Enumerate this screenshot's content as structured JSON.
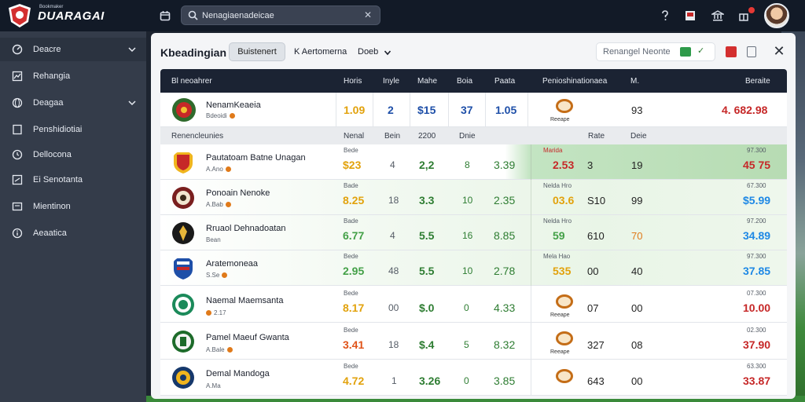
{
  "app": {
    "brand_small": "Bookmaker",
    "brand": "DUARAGAI",
    "search_placeholder": "Nenagiaenadeicae",
    "colors": {
      "topbar": "#121a27",
      "sidebar": "#343c4a",
      "accent_red": "#d32f2f",
      "accent_green": "#2e9a4a"
    }
  },
  "topbar_icons": [
    "calendar-icon",
    "question-icon",
    "document-icon",
    "bank-icon",
    "gift-icon"
  ],
  "sidebar": {
    "items": [
      {
        "label": "Deacre",
        "icon": "dashboard-icon",
        "chevron": true,
        "active": true
      },
      {
        "label": "Rehangia",
        "icon": "chart-icon",
        "chevron": false
      },
      {
        "label": "Deagaa",
        "icon": "globe-icon",
        "chevron": true
      },
      {
        "label": "Penshidiotiai",
        "icon": "tablet-icon",
        "chevron": false
      },
      {
        "label": "Dellocona",
        "icon": "clock-icon",
        "chevron": false
      },
      {
        "label": "Ei Senotanta",
        "icon": "list-icon",
        "chevron": false
      },
      {
        "label": "Mientinon",
        "icon": "message-icon",
        "chevron": false
      },
      {
        "label": "Aeaatica",
        "icon": "info-icon",
        "chevron": false
      }
    ]
  },
  "panel": {
    "title": "Kbeadingian",
    "tab_active": "Buistenert",
    "tab_2": "K Aertomerna",
    "tab_3": "Doeb",
    "right_field": "Renangel Neonte"
  },
  "table": {
    "headers": {
      "team": "Bl neoahrer",
      "c1": "Horis",
      "c2": "Inyle",
      "c3": "Mahe",
      "c4": "Boia",
      "c5": "Paata",
      "c6": "Penioshinationaea",
      "c7": "M.",
      "c8": "Beraite"
    },
    "featured": {
      "name": "NenamKeaeia",
      "sub": "Bdeoidi",
      "v1": "1.09",
      "v2": "2",
      "v3": "$15",
      "v4": "37",
      "v5": "1.05",
      "ball_label": "Reeape",
      "v7": "93",
      "v8": "4. 682.98"
    },
    "subheader": {
      "team": "Renencleunies",
      "c1": "Nenal",
      "c2": "Bein",
      "c3": "2200",
      "c4": "Dnie",
      "c5": "Rate",
      "c6": "Deie",
      "c7": "Marida"
    },
    "rows": [
      {
        "name": "Pautatoam Batne Unagan",
        "sub": "A.Ano",
        "micro1": "Bede",
        "v1": "$23",
        "v1c": "#e2a20c",
        "v2": "4",
        "v3": "2,2",
        "v4": "8",
        "v5": "3.39",
        "micro6": "Marida",
        "v6": "2.53",
        "v6c": "#c62828",
        "v7": "3",
        "v8": "19",
        "micro8": "97.300",
        "v9": "45 75",
        "v9c": "#c62828",
        "crest": "crest-red"
      },
      {
        "name": "Ponoain Nenoke",
        "sub": "A.Bab",
        "micro1": "Bade",
        "v1": "8.25",
        "v1c": "#e2a20c",
        "v2": "18",
        "v3": "3.3",
        "v4": "10",
        "v5": "2.35",
        "micro6": "Nelda Hro",
        "v6": "03.6",
        "v6c": "#e2a20c",
        "v7": "S10",
        "v8": "99",
        "micro8": "67.300",
        "v9": "$5.99",
        "v9c": "#1e88e5",
        "crest": "crest-maroon"
      },
      {
        "name": "Rruaol Dehnadoatan",
        "sub": "Bean",
        "micro1": "Bade",
        "v1": "6.77",
        "v1c": "#43a047",
        "v2": "4",
        "v3": "5.5",
        "v4": "16",
        "v5": "8.85",
        "micro6": "Nelda Hro",
        "v6": "59",
        "v6c": "#43a047",
        "v7": "610",
        "v8": "70",
        "micro8": "97.200",
        "v9": "34.89",
        "v9c": "#1e88e5",
        "crest": "crest-black"
      },
      {
        "name": "Aratemoneaa",
        "sub": "S.Se",
        "micro1": "Bede",
        "v1": "2.95",
        "v1c": "#43a047",
        "v2": "48",
        "v3": "5.5",
        "v4": "10",
        "v5": "2.78",
        "micro6": "Mela Hao",
        "v6": "535",
        "v6c": "#e2a20c",
        "v7": "00",
        "v8": "40",
        "micro8": "97.300",
        "v9": "37.85",
        "v9c": "#1e88e5",
        "crest": "crest-blue"
      },
      {
        "name": "Naemal Maemsanta",
        "sub": "2.17",
        "micro1": "Bede",
        "v1": "8.17",
        "v1c": "#e2a20c",
        "v2": "00",
        "v3": "$.0",
        "v4": "0",
        "v5": "4.33",
        "ball_label": "Reeape",
        "v7": "07",
        "v8": "00",
        "micro8": "07.300",
        "v9": "10.00",
        "v9c": "#c62828",
        "crest": "crest-green"
      },
      {
        "name": "Pamel Maeuf Gwanta",
        "sub": "A.Bale",
        "micro1": "Bede",
        "v1": "3.41",
        "v1c": "#e0541a",
        "v2": "18",
        "v3": "$.4",
        "v4": "5",
        "v5": "8.32",
        "ball_label": "Reeape",
        "v7": "327",
        "v8": "08",
        "micro8": "02.300",
        "v9": "37.90",
        "v9c": "#c62828",
        "crest": "crest-dgreen"
      },
      {
        "name": "Demal Mandoga",
        "sub": "A.Ma",
        "micro1": "Bede",
        "v1": "4.72",
        "v1c": "#e2a20c",
        "v2": "1",
        "v3": "3.26",
        "v4": "0",
        "v5": "3.85",
        "ball_label": "",
        "v7": "643",
        "v8": "00",
        "micro8": "63.300",
        "v9": "33.87",
        "v9c": "#c62828",
        "crest": "crest-navy"
      }
    ]
  }
}
